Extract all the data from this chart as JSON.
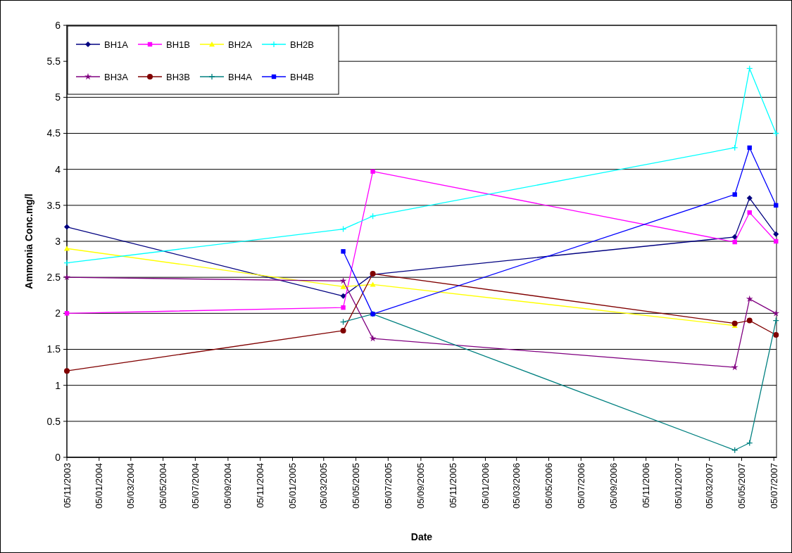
{
  "chart_data": {
    "type": "line",
    "xlabel": "Date",
    "ylabel": "Ammonia Conc.mg/l",
    "x": [
      "2003-11-05",
      "2005-04-11",
      "2005-06-06",
      "2007-04-22",
      "2007-05-20",
      "2007-07-09"
    ],
    "xlim": [
      "2003-11-05",
      "2007-07-10"
    ],
    "xticks": [
      {
        "value": "2003-11-05",
        "label": "05/11/2003"
      },
      {
        "value": "2004-01-05",
        "label": "05/01/2004"
      },
      {
        "value": "2004-03-05",
        "label": "05/03/2004"
      },
      {
        "value": "2004-05-05",
        "label": "05/05/2004"
      },
      {
        "value": "2004-07-05",
        "label": "05/07/2004"
      },
      {
        "value": "2004-09-05",
        "label": "05/09/2004"
      },
      {
        "value": "2004-11-05",
        "label": "05/11/2004"
      },
      {
        "value": "2005-01-05",
        "label": "05/01/2005"
      },
      {
        "value": "2005-03-05",
        "label": "05/03/2005"
      },
      {
        "value": "2005-05-05",
        "label": "05/05/2005"
      },
      {
        "value": "2005-07-05",
        "label": "05/07/2005"
      },
      {
        "value": "2005-09-05",
        "label": "05/09/2005"
      },
      {
        "value": "2005-11-05",
        "label": "05/11/2005"
      },
      {
        "value": "2006-01-05",
        "label": "05/01/2006"
      },
      {
        "value": "2006-03-05",
        "label": "05/03/2006"
      },
      {
        "value": "2006-05-05",
        "label": "05/05/2006"
      },
      {
        "value": "2006-07-05",
        "label": "05/07/2006"
      },
      {
        "value": "2006-09-05",
        "label": "05/09/2006"
      },
      {
        "value": "2006-11-05",
        "label": "05/11/2006"
      },
      {
        "value": "2007-01-05",
        "label": "05/01/2007"
      },
      {
        "value": "2007-03-05",
        "label": "05/03/2007"
      },
      {
        "value": "2007-05-05",
        "label": "05/05/2007"
      },
      {
        "value": "2007-07-05",
        "label": "05/07/2007"
      }
    ],
    "ylim": [
      0,
      6
    ],
    "yticks": [
      0,
      0.5,
      1,
      1.5,
      2,
      2.5,
      3,
      3.5,
      4,
      4.5,
      5,
      5.5,
      6
    ],
    "grid": "y",
    "legend": "top left",
    "line_style": "solid",
    "series": [
      {
        "name": "BH1A",
        "color": "#000080",
        "marker": "diamond",
        "values": [
          3.2,
          2.24,
          2.54,
          3.06,
          3.6,
          3.1
        ]
      },
      {
        "name": "BH1B",
        "color": "#ff00ff",
        "marker": "square",
        "values": [
          2.0,
          2.08,
          3.97,
          2.99,
          3.4,
          3.0
        ]
      },
      {
        "name": "BH2A",
        "color": "#ffff00",
        "marker": "triangle",
        "values": [
          2.9,
          2.37,
          2.4,
          1.83,
          null,
          null
        ]
      },
      {
        "name": "BH2B",
        "color": "#00ffff",
        "marker": "cross",
        "values": [
          2.7,
          3.17,
          3.35,
          4.3,
          5.4,
          4.5
        ]
      },
      {
        "name": "BH3A",
        "color": "#800080",
        "marker": "star",
        "values": [
          2.5,
          2.45,
          1.65,
          1.25,
          2.2,
          2.0
        ]
      },
      {
        "name": "BH3B",
        "color": "#800000",
        "marker": "circle",
        "values": [
          1.2,
          1.76,
          2.55,
          1.86,
          1.9,
          1.7
        ]
      },
      {
        "name": "BH4A",
        "color": "#008080",
        "marker": "cross",
        "values": [
          null,
          1.88,
          1.99,
          0.1,
          0.2,
          1.9
        ]
      },
      {
        "name": "BH4B",
        "color": "#0000ff",
        "marker": "square",
        "values": [
          null,
          2.86,
          1.99,
          3.65,
          4.3,
          3.5
        ]
      }
    ]
  }
}
